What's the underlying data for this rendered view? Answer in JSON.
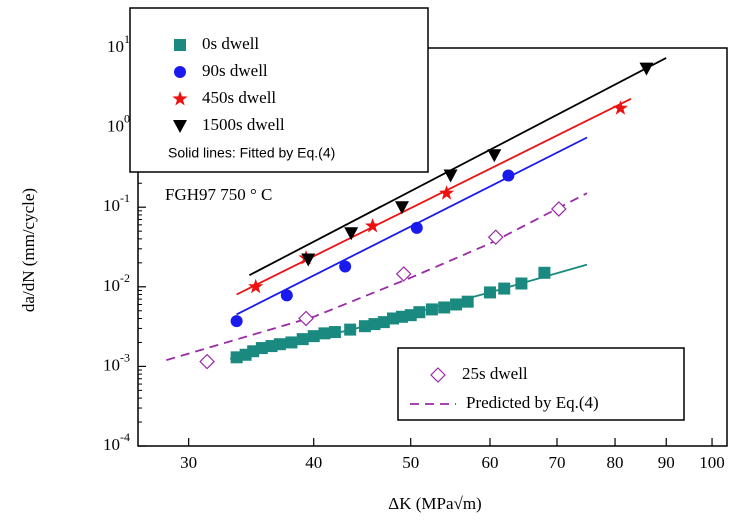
{
  "chart_data": {
    "type": "scatter",
    "x_label": "ΔK (MPa√m)",
    "y_label": "da/dN (mm/cycle)",
    "x_log": true,
    "y_log": true,
    "xlim": [
      26.7,
      103.5
    ],
    "ylim": [
      0.0001,
      10
    ],
    "xticks": [
      30,
      40,
      50,
      60,
      70,
      80,
      90,
      100
    ],
    "yticks": [
      {
        "value": 0.0001,
        "label": "10^-4"
      },
      {
        "value": 0.001,
        "label": "10^-3"
      },
      {
        "value": 0.01,
        "label": "10^-2"
      },
      {
        "value": 0.1,
        "label": "10^-1"
      },
      {
        "value": 1,
        "label": "10^0"
      },
      {
        "value": 10,
        "label": "10^1"
      }
    ],
    "annotations": [
      "Solid lines: Fitted by Eq.(4)",
      "FGH97  750 ° C"
    ],
    "series": [
      {
        "name": "0s  dwell",
        "color": "#1a8a80",
        "marker": "square",
        "x": [
          33.5,
          34.2,
          34.8,
          35.5,
          36.3,
          37,
          38,
          39,
          40,
          41,
          42,
          43.5,
          45,
          46,
          47,
          48,
          49,
          50,
          51,
          52.5,
          54,
          55.5,
          57,
          60,
          62,
          64.5,
          68
        ],
        "values": [
          0.0013,
          0.0014,
          0.00155,
          0.0017,
          0.0018,
          0.0019,
          0.002,
          0.0022,
          0.0024,
          0.0026,
          0.0027,
          0.0029,
          0.0032,
          0.0034,
          0.0036,
          0.004,
          0.0042,
          0.0044,
          0.0048,
          0.0052,
          0.0055,
          0.006,
          0.0065,
          0.0085,
          0.0095,
          0.011,
          0.015
        ],
        "fit": {
          "style": "solid",
          "x": [
            33,
            45,
            60,
            75
          ],
          "values": [
            0.00125,
            0.0032,
            0.0085,
            0.019
          ]
        }
      },
      {
        "name": "90s  dwell",
        "color": "#1a1aee",
        "marker": "circle",
        "x": [
          33.5,
          37.6,
          43,
          50.7,
          62.6
        ],
        "values": [
          0.0037,
          0.0078,
          0.018,
          0.055,
          0.25
        ],
        "fit": {
          "style": "solid",
          "x": [
            33.5,
            75
          ],
          "values": [
            0.0045,
            0.75
          ]
        }
      },
      {
        "name": "450s  dwell",
        "color": "#ee1111",
        "marker": "star",
        "x": [
          35,
          39.3,
          45.8,
          54.3,
          81
        ],
        "values": [
          0.01,
          0.023,
          0.058,
          0.15,
          1.75
        ],
        "fit": {
          "style": "solid",
          "x": [
            33.5,
            83
          ],
          "values": [
            0.008,
            2.3
          ]
        }
      },
      {
        "name": "1500s dwell",
        "color": "#000000",
        "marker": "triangle-down",
        "x": [
          39.5,
          43.6,
          49,
          54.8,
          60.6,
          86
        ],
        "values": [
          0.022,
          0.047,
          0.1,
          0.25,
          0.45,
          5.5
        ],
        "fit": {
          "style": "solid",
          "x": [
            34.5,
            90
          ],
          "values": [
            0.014,
            7.5
          ]
        }
      },
      {
        "name": "25s dwell",
        "color": "#9a2aa8",
        "marker": "diamond-open",
        "x": [
          31.3,
          39.3,
          49.2,
          60.8,
          70.3
        ],
        "values": [
          0.00115,
          0.004,
          0.0145,
          0.042,
          0.095
        ],
        "fit": {
          "name": "Predicted by Eq.(4)",
          "style": "dashed",
          "x": [
            28.5,
            40,
            50,
            60,
            75
          ],
          "values": [
            0.0012,
            0.0042,
            0.013,
            0.035,
            0.15
          ]
        }
      }
    ]
  }
}
